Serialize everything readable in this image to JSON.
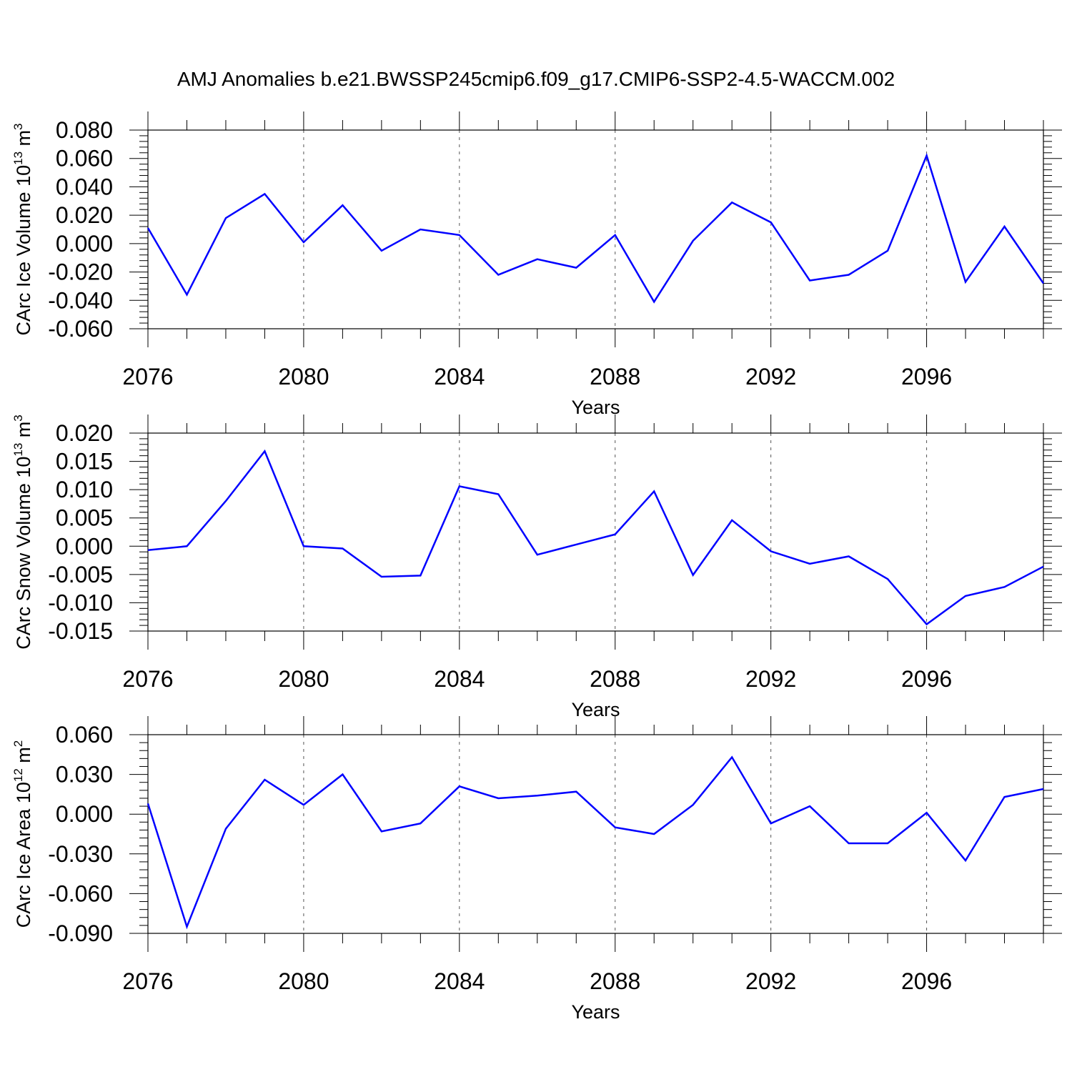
{
  "figure": {
    "title": "AMJ Anomalies b.e21.BWSSP245cmip6.f09_g17.CMIP6-SSP2-4.5-WACCM.002"
  },
  "colors": {
    "series": "#0000ff",
    "axis": "#000000",
    "grid": "#555555"
  },
  "chart_data": [
    {
      "type": "line",
      "name": "ice-volume",
      "title": "",
      "xlabel": "Years",
      "ylabel_main": "CArc Ice Volume 10",
      "ylabel_exp": "13",
      "ylabel_unit": " m",
      "ylabel_unit_exp": "3",
      "xlim": [
        2076,
        2099
      ],
      "ylim": [
        -0.06,
        0.08
      ],
      "yticks": [
        -0.06,
        -0.04,
        -0.02,
        0.0,
        0.02,
        0.04,
        0.06,
        0.08
      ],
      "ytick_labels": [
        "-0.060",
        "-0.040",
        "-0.020",
        "0.000",
        "0.020",
        "0.040",
        "0.060",
        "0.080"
      ],
      "xticks": [
        2076,
        2080,
        2084,
        2088,
        2092,
        2096
      ],
      "xtick_labels": [
        "2076",
        "2080",
        "2084",
        "2088",
        "2092",
        "2096"
      ],
      "x": [
        2076,
        2077,
        2078,
        2079,
        2080,
        2081,
        2082,
        2083,
        2084,
        2085,
        2086,
        2087,
        2088,
        2089,
        2090,
        2091,
        2092,
        2093,
        2094,
        2095,
        2096,
        2097,
        2098,
        2099
      ],
      "series": [
        {
          "name": "CArc Ice Volume",
          "values": [
            0.011,
            -0.036,
            0.018,
            0.035,
            0.001,
            0.027,
            -0.005,
            0.01,
            0.006,
            -0.022,
            -0.011,
            -0.017,
            0.006,
            -0.041,
            0.002,
            0.029,
            0.015,
            -0.026,
            -0.022,
            -0.005,
            0.062,
            -0.027,
            0.012,
            -0.028
          ]
        }
      ]
    },
    {
      "type": "line",
      "name": "snow-volume",
      "title": "",
      "xlabel": "Years",
      "ylabel_main": "CArc Snow Volume 10",
      "ylabel_exp": "13",
      "ylabel_unit": " m",
      "ylabel_unit_exp": "3",
      "xlim": [
        2076,
        2099
      ],
      "ylim": [
        -0.015,
        0.02
      ],
      "yticks": [
        -0.015,
        -0.01,
        -0.005,
        0.0,
        0.005,
        0.01,
        0.015,
        0.02
      ],
      "ytick_labels": [
        "-0.015",
        "-0.010",
        "-0.005",
        "0.000",
        "0.005",
        "0.010",
        "0.015",
        "0.020"
      ],
      "xticks": [
        2076,
        2080,
        2084,
        2088,
        2092,
        2096
      ],
      "xtick_labels": [
        "2076",
        "2080",
        "2084",
        "2088",
        "2092",
        "2096"
      ],
      "x": [
        2076,
        2077,
        2078,
        2079,
        2080,
        2081,
        2082,
        2083,
        2084,
        2085,
        2086,
        2087,
        2088,
        2089,
        2090,
        2091,
        2092,
        2093,
        2094,
        2095,
        2096,
        2097,
        2098,
        2099
      ],
      "series": [
        {
          "name": "CArc Snow Volume",
          "values": [
            -0.0007,
            0.0,
            0.008,
            0.0168,
            0.0,
            -0.0004,
            -0.0054,
            -0.0052,
            0.0106,
            0.0092,
            -0.0015,
            0.0003,
            0.0021,
            0.0097,
            -0.0051,
            0.0046,
            -0.0009,
            -0.0031,
            -0.0018,
            -0.0058,
            -0.0138,
            -0.0088,
            -0.0072,
            -0.0036
          ]
        }
      ]
    },
    {
      "type": "line",
      "name": "ice-area",
      "title": "",
      "xlabel": "Years",
      "ylabel_main": "CArc Ice Area 10",
      "ylabel_exp": "12",
      "ylabel_unit": " m",
      "ylabel_unit_exp": "2",
      "xlim": [
        2076,
        2099
      ],
      "ylim": [
        -0.09,
        0.06
      ],
      "yticks": [
        -0.09,
        -0.06,
        -0.03,
        0.0,
        0.03,
        0.06
      ],
      "ytick_labels": [
        "-0.090",
        "-0.060",
        "-0.030",
        "0.000",
        "0.030",
        "0.060"
      ],
      "xticks": [
        2076,
        2080,
        2084,
        2088,
        2092,
        2096
      ],
      "xtick_labels": [
        "2076",
        "2080",
        "2084",
        "2088",
        "2092",
        "2096"
      ],
      "x": [
        2076,
        2077,
        2078,
        2079,
        2080,
        2081,
        2082,
        2083,
        2084,
        2085,
        2086,
        2087,
        2088,
        2089,
        2090,
        2091,
        2092,
        2093,
        2094,
        2095,
        2096,
        2097,
        2098,
        2099
      ],
      "series": [
        {
          "name": "CArc Ice Area",
          "values": [
            0.008,
            -0.085,
            -0.011,
            0.026,
            0.007,
            0.03,
            -0.013,
            -0.007,
            0.021,
            0.012,
            0.014,
            0.017,
            -0.01,
            -0.015,
            0.007,
            0.043,
            -0.007,
            0.006,
            -0.022,
            -0.022,
            0.001,
            -0.035,
            0.013,
            0.019
          ]
        }
      ]
    }
  ]
}
